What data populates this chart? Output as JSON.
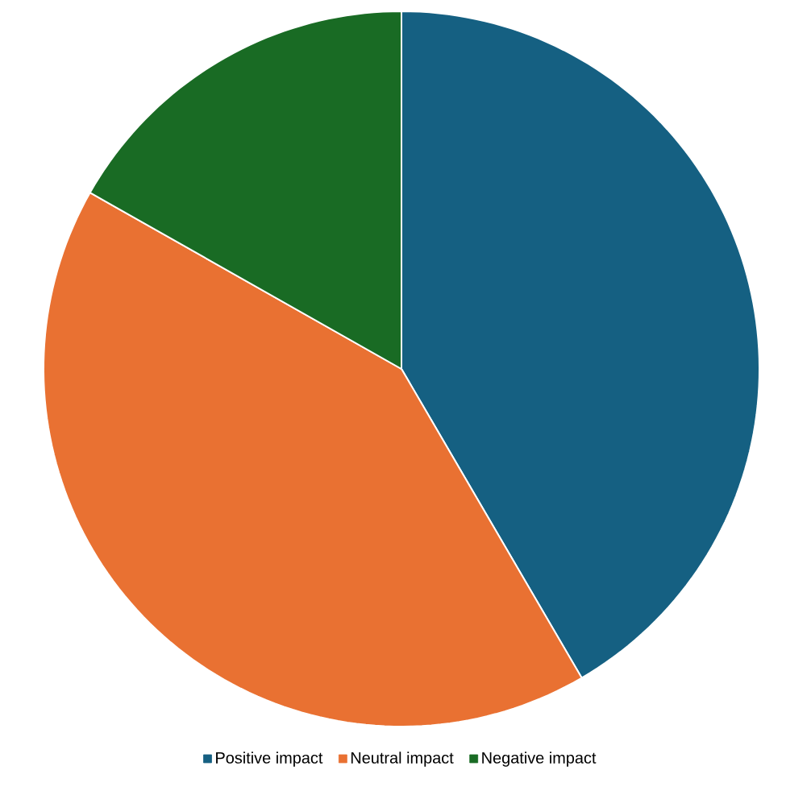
{
  "chart_data": {
    "type": "pie",
    "categories": [
      "Positive impact",
      "Neutral impact",
      "Negative impact"
    ],
    "values": [
      41.6,
      41.6,
      16.8
    ],
    "colors": [
      "#156082",
      "#e97132",
      "#196b24"
    ],
    "legend": "bottom"
  }
}
